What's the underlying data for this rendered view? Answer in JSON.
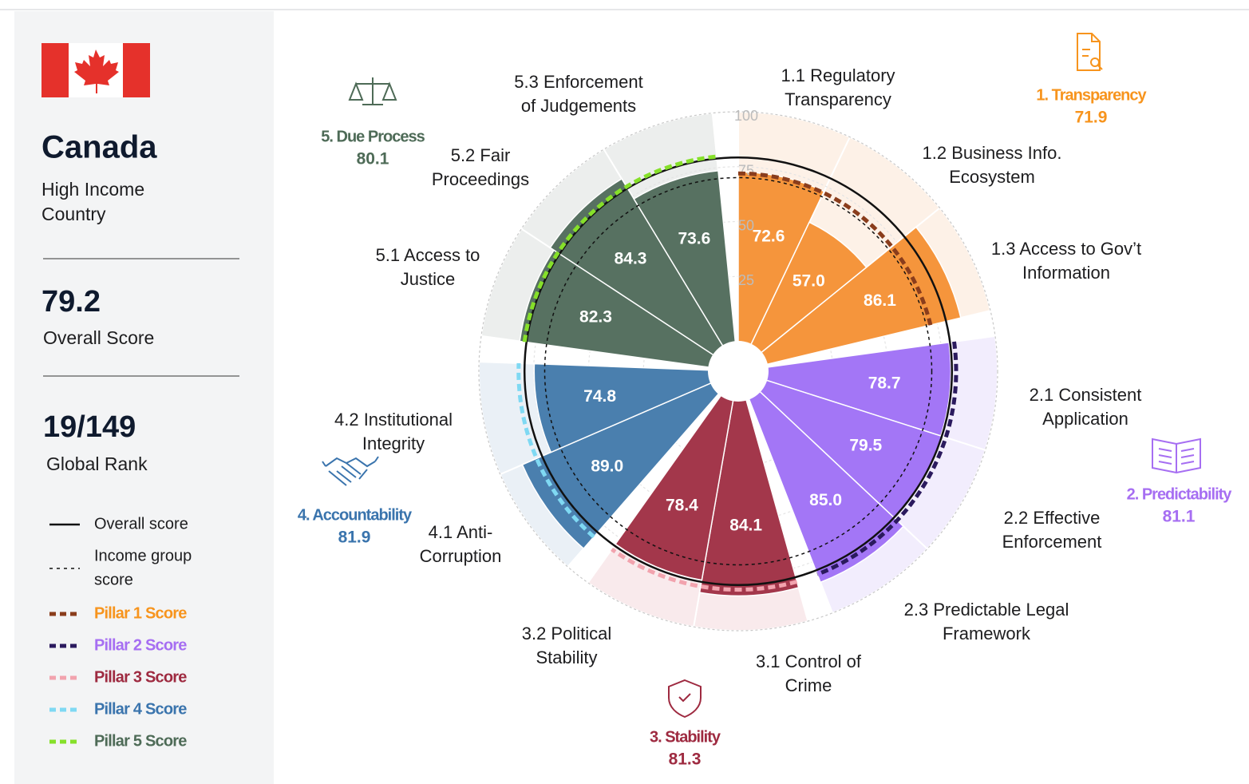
{
  "profile": {
    "country": "Canada",
    "income_group": [
      "High Income",
      "Country"
    ],
    "overall_score_label": "Overall Score",
    "rank": "19/149",
    "rank_label": "Global Rank"
  },
  "chart_data": {
    "type": "polar_bar",
    "rlim": [
      0,
      100
    ],
    "rticks": [
      25,
      50,
      75,
      100
    ],
    "overall_score": 79.2,
    "overall_color": "#111111",
    "income_group_score": 70,
    "legend": {
      "overall": "Overall score",
      "income": [
        "Income group",
        "score"
      ]
    },
    "pillars": [
      {
        "name": "1. Transparency",
        "score": 71.9,
        "color": "#f5953c",
        "tint": "#fdf1e7",
        "label_color": "#f7941d",
        "score_color": "#8a3d1c",
        "legend": "Pillar 1 Score",
        "subpillars": [
          {
            "label": [
              "1.1 Regulatory",
              "Transparency"
            ],
            "value": 72.6
          },
          {
            "label": [
              "1.2 Business Info.",
              "Ecosystem"
            ],
            "value": 57,
            "value_label": "57.0"
          },
          {
            "label": [
              "1.3 Access to Gov’t",
              "Information"
            ],
            "value": 86.1
          }
        ]
      },
      {
        "name": "2. Predictability",
        "score": 81.1,
        "color": "#a376f6",
        "tint": "#f2edfd",
        "label_color": "#a66ef2",
        "score_color": "#2b1a5e",
        "legend": "Pillar 2 Score",
        "subpillars": [
          {
            "label": [
              "2.1 Consistent",
              "Application"
            ],
            "value": 78.7
          },
          {
            "label": [
              "2.2 Effective",
              "Enforcement"
            ],
            "value": 79.5
          },
          {
            "label": [
              "2.3 Predictable Legal",
              "Framework"
            ],
            "value": 85,
            "value_label": "85.0"
          }
        ]
      },
      {
        "name": "3. Stability",
        "score": 81.3,
        "color": "#a3374b",
        "tint": "#f9eaec",
        "label_color": "#9e2a40",
        "score_color": "#f2a3ae",
        "legend": "Pillar 3 Score",
        "subpillars": [
          {
            "label": [
              "3.1 Control of",
              "Crime"
            ],
            "value": 84.1
          },
          {
            "label": [
              "3.2 Political",
              "Stability"
            ],
            "value": 78.4
          }
        ]
      },
      {
        "name": "4. Accountability",
        "score": 81.9,
        "color": "#4a7fae",
        "tint": "#eaf0f6",
        "label_color": "#3a74ad",
        "score_color": "#7fd9f3",
        "legend": "Pillar 4 Score",
        "subpillars": [
          {
            "label": [
              "4.1 Anti-",
              "Corruption"
            ],
            "value": 89,
            "value_label": "89.0"
          },
          {
            "label": [
              "4.2 Institutional",
              "Integrity"
            ],
            "value": 74.8
          }
        ]
      },
      {
        "name": "5. Due Process",
        "score": 80.1,
        "color": "#577161",
        "tint": "#eceeed",
        "label_color": "#4e6b57",
        "score_color": "#86e02a",
        "legend": "Pillar 5 Score",
        "subpillars": [
          {
            "label": [
              "5.1 Access to",
              "Justice"
            ],
            "value": 82.3
          },
          {
            "label": [
              "5.2 Fair",
              "Proceedings"
            ],
            "value": 84.3
          },
          {
            "label": [
              "5.3 Enforcement",
              "of Judgements"
            ],
            "value": 73.6
          }
        ]
      }
    ]
  }
}
